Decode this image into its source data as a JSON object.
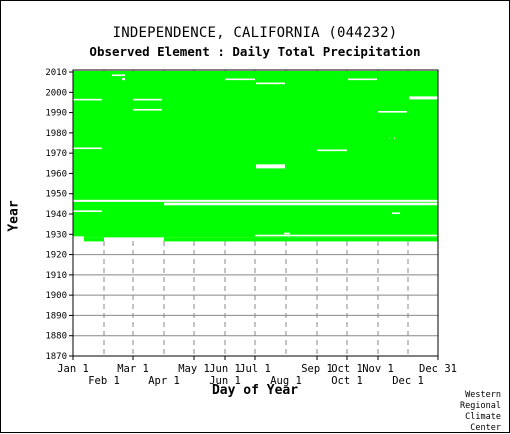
{
  "chart_data": {
    "type": "heatmap",
    "title": "INDEPENDENCE, CALIFORNIA   (044232)",
    "subtitle": "Observed Element : Daily Total Precipitation",
    "xlabel": "Day of Year",
    "ylabel": "Year",
    "grid": true,
    "data_color": "#00ff00",
    "gap_color": "#ffffff",
    "xlim": [
      1,
      366
    ],
    "ylim": [
      1870,
      2011
    ],
    "x_ticks_top_row": [
      {
        "label": "Jan 1",
        "day": 1
      },
      {
        "label": "Mar 1",
        "day": 61
      },
      {
        "label": "May 1",
        "day": 122
      },
      {
        "label": "Jun 1",
        "day": 153
      },
      {
        "label": "Jul 1",
        "day": 183
      },
      {
        "label": "Sep 1",
        "day": 245
      },
      {
        "label": "Oct 1",
        "day": 275
      },
      {
        "label": "Nov 1",
        "day": 306
      },
      {
        "label": "Dec 31",
        "day": 366
      }
    ],
    "x_ticks_bottom_row": [
      {
        "label": "Feb 1",
        "day": 32
      },
      {
        "label": "Apr 1",
        "day": 92
      },
      {
        "label": "Jun 1",
        "day": 153
      },
      {
        "label": "Aug 1",
        "day": 214
      },
      {
        "label": "Oct 1",
        "day": 275
      },
      {
        "label": "Dec 1",
        "day": 336
      }
    ],
    "month_boundaries": [
      32,
      61,
      92,
      122,
      153,
      183,
      214,
      245,
      275,
      306,
      336
    ],
    "y_ticks": [
      "1870",
      "1880",
      "1890",
      "1900",
      "1910",
      "1920",
      "1930",
      "1940",
      "1950",
      "1960",
      "1970",
      "1980",
      "1990",
      "2000",
      "2010"
    ],
    "record_segments": [
      {
        "year_from": 1928.5,
        "year_to": 2010.5,
        "day_from": 1,
        "day_to": 366
      },
      {
        "year_from": 1926.5,
        "year_to": 1928.5,
        "day_from": 12,
        "day_to": 32
      },
      {
        "year_from": 1926.5,
        "year_to": 1928.5,
        "day_from": 92,
        "day_to": 183
      },
      {
        "year_from": 1926.5,
        "year_to": 1928.5,
        "day_from": 183,
        "day_to": 275
      },
      {
        "year_from": 1926.5,
        "year_to": 1928.5,
        "day_from": 275,
        "day_to": 366
      }
    ],
    "missing_segments": [
      {
        "year_from": 1946.0,
        "year_to": 1947.0,
        "day_from": 1,
        "day_to": 366
      },
      {
        "year_from": 1944.3,
        "year_to": 1945.6,
        "day_from": 92,
        "day_to": 366
      },
      {
        "year_from": 1929.0,
        "year_to": 1929.8,
        "day_from": 183,
        "day_to": 366
      },
      {
        "year_from": 1928.3,
        "year_to": 1929.0,
        "day_from": 1,
        "day_to": 12
      },
      {
        "year_from": 1941.0,
        "year_to": 1941.8,
        "day_from": 1,
        "day_to": 30
      },
      {
        "year_from": 1972.0,
        "year_to": 1972.8,
        "day_from": 1,
        "day_to": 30
      },
      {
        "year_from": 1996.0,
        "year_to": 1996.8,
        "day_from": 1,
        "day_to": 30
      },
      {
        "year_from": 2008.0,
        "year_to": 2008.8,
        "day_from": 40,
        "day_to": 53
      },
      {
        "year_from": 2006.0,
        "year_to": 2007.0,
        "day_from": 50,
        "day_to": 53
      },
      {
        "year_from": 1996.0,
        "year_to": 1996.8,
        "day_from": 61,
        "day_to": 90
      },
      {
        "year_from": 1991.0,
        "year_to": 1991.8,
        "day_from": 61,
        "day_to": 90
      },
      {
        "year_from": 2006.0,
        "year_to": 2006.8,
        "day_from": 153,
        "day_to": 183
      },
      {
        "year_from": 2004.0,
        "year_to": 2004.8,
        "day_from": 184,
        "day_to": 213
      },
      {
        "year_from": 1962.5,
        "year_to": 1964.5,
        "day_from": 184,
        "day_to": 213
      },
      {
        "year_from": 1930.0,
        "year_to": 1930.8,
        "day_from": 212,
        "day_to": 218
      },
      {
        "year_from": 1971.0,
        "year_to": 1971.8,
        "day_from": 245,
        "day_to": 275
      },
      {
        "year_from": 2006.0,
        "year_to": 2006.8,
        "day_from": 276,
        "day_to": 305
      },
      {
        "year_from": 1990.0,
        "year_to": 1990.8,
        "day_from": 306,
        "day_to": 335
      },
      {
        "year_from": 1977.0,
        "year_to": 1977.6,
        "day_from": 317,
        "day_to": 318
      },
      {
        "year_from": 1977.0,
        "year_to": 1977.6,
        "day_from": 322,
        "day_to": 323
      },
      {
        "year_from": 1940.0,
        "year_to": 1940.8,
        "day_from": 320,
        "day_to": 328
      },
      {
        "year_from": 1996.5,
        "year_to": 1998.0,
        "day_from": 337,
        "day_to": 366
      }
    ]
  },
  "credit": [
    "Western",
    "Regional",
    "Climate",
    "Center"
  ]
}
